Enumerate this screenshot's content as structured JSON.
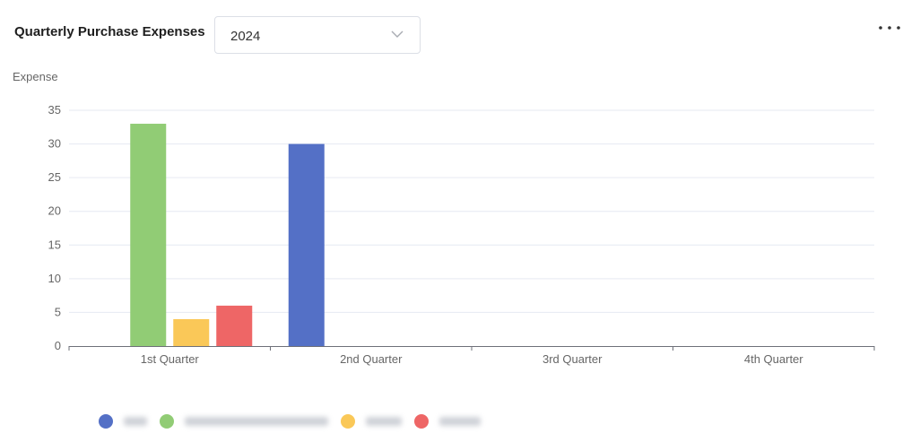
{
  "header": {
    "title": "Quarterly Purchase Expenses",
    "year_value": "2024",
    "more_icon": "more-horizontal-icon",
    "chevron_icon": "chevron-down-icon"
  },
  "chart_data": {
    "type": "bar",
    "ylabel": "Expense",
    "ylim": [
      0,
      35
    ],
    "yticks": [
      0,
      5,
      10,
      15,
      20,
      25,
      30,
      35
    ],
    "categories": [
      "1st Quarter",
      "2nd Quarter",
      "3rd Quarter",
      "4th Quarter"
    ],
    "grid": true,
    "legend": "bottom-left",
    "series": [
      {
        "color": "#5470c6",
        "values": [
          0,
          30,
          0,
          0
        ]
      },
      {
        "color": "#91cc75",
        "values": [
          33,
          0,
          0,
          0
        ]
      },
      {
        "color": "#fac858",
        "values": [
          4,
          0,
          0,
          0
        ]
      },
      {
        "color": "#ee6666",
        "values": [
          6,
          0,
          0,
          0
        ]
      }
    ]
  }
}
